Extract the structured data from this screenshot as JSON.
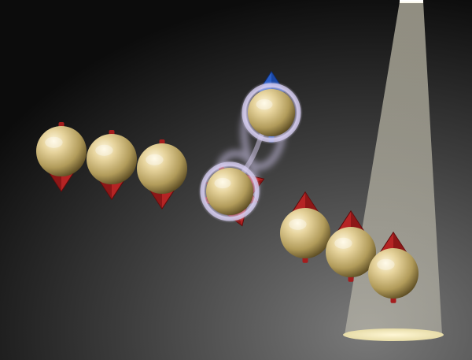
{
  "scene": {
    "description_label": "",
    "colors": {
      "background_dark": "#0f0f0f",
      "background_light": "#6e6e6e",
      "sphere_highlight": "#fff6d6",
      "sphere_mid": "#d7c489",
      "sphere_shadow": "#6f5e2e",
      "arrow_red": "#b01e1e",
      "arrow_red_dark": "#6e0d0d",
      "arrow_blue": "#1f4fb0",
      "arrow_blue_dark": "#0f2a6a",
      "entanglement_glow": "#c9bfe6",
      "spotlight": "#f7f1d2"
    },
    "spheres": [
      {
        "name": "spin-1",
        "spin": "down"
      },
      {
        "name": "spin-2",
        "spin": "down"
      },
      {
        "name": "spin-3",
        "spin": "down"
      },
      {
        "name": "spin-entangled-lower",
        "spin": "superposition"
      },
      {
        "name": "spin-entangled-upper",
        "spin": "up"
      },
      {
        "name": "spin-6",
        "spin": "up"
      },
      {
        "name": "spin-7",
        "spin": "up"
      },
      {
        "name": "spin-8",
        "spin": "up"
      }
    ]
  }
}
